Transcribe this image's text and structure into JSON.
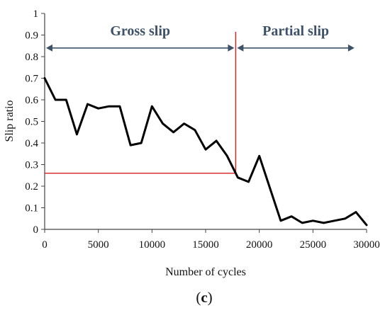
{
  "chart_data": {
    "type": "line",
    "xlabel": "Number of cycles",
    "ylabel": "Slip ratio",
    "xlim": [
      0,
      30000
    ],
    "ylim": [
      0,
      1
    ],
    "xticks": [
      0,
      5000,
      10000,
      15000,
      20000,
      25000,
      30000
    ],
    "yticks": [
      0,
      0.1,
      0.2,
      0.3,
      0.4,
      0.5,
      0.6,
      0.7,
      0.8,
      0.9,
      1
    ],
    "ytick_labels": [
      "0",
      "0.1",
      "0.2",
      "0.3",
      "0.4",
      "0.5",
      "0.6",
      "0.7",
      "0.8",
      "0.9",
      "1"
    ],
    "grid": false,
    "series": [
      {
        "color": "#000000",
        "x": [
          0,
          1000,
          2000,
          3000,
          4000,
          5000,
          6000,
          7000,
          8000,
          9000,
          10000,
          11000,
          12000,
          13000,
          14000,
          15000,
          16000,
          17000,
          18000,
          19000,
          20000,
          21000,
          22000,
          23000,
          24000,
          25000,
          26000,
          27000,
          28000,
          29000,
          30000
        ],
        "y": [
          0.7,
          0.6,
          0.6,
          0.44,
          0.58,
          0.56,
          0.57,
          0.57,
          0.39,
          0.4,
          0.57,
          0.49,
          0.45,
          0.49,
          0.46,
          0.37,
          0.41,
          0.34,
          0.24,
          0.22,
          0.34,
          0.19,
          0.04,
          0.06,
          0.03,
          0.04,
          0.03,
          0.04,
          0.05,
          0.08,
          0.02
        ]
      }
    ],
    "annotations": {
      "transition_x": 17800,
      "transition_y": 0.26,
      "line_color": "#d62020",
      "arrow_color": "#3d5168",
      "arrow_y": 0.84,
      "regions": [
        {
          "label": "Gross slip",
          "from": 0,
          "to": 17800
        },
        {
          "label": "Partial slip",
          "from": 17800,
          "to": 29000
        }
      ]
    },
    "panel_label": {
      "open": "(",
      "letter": "c",
      "close": ")"
    }
  }
}
